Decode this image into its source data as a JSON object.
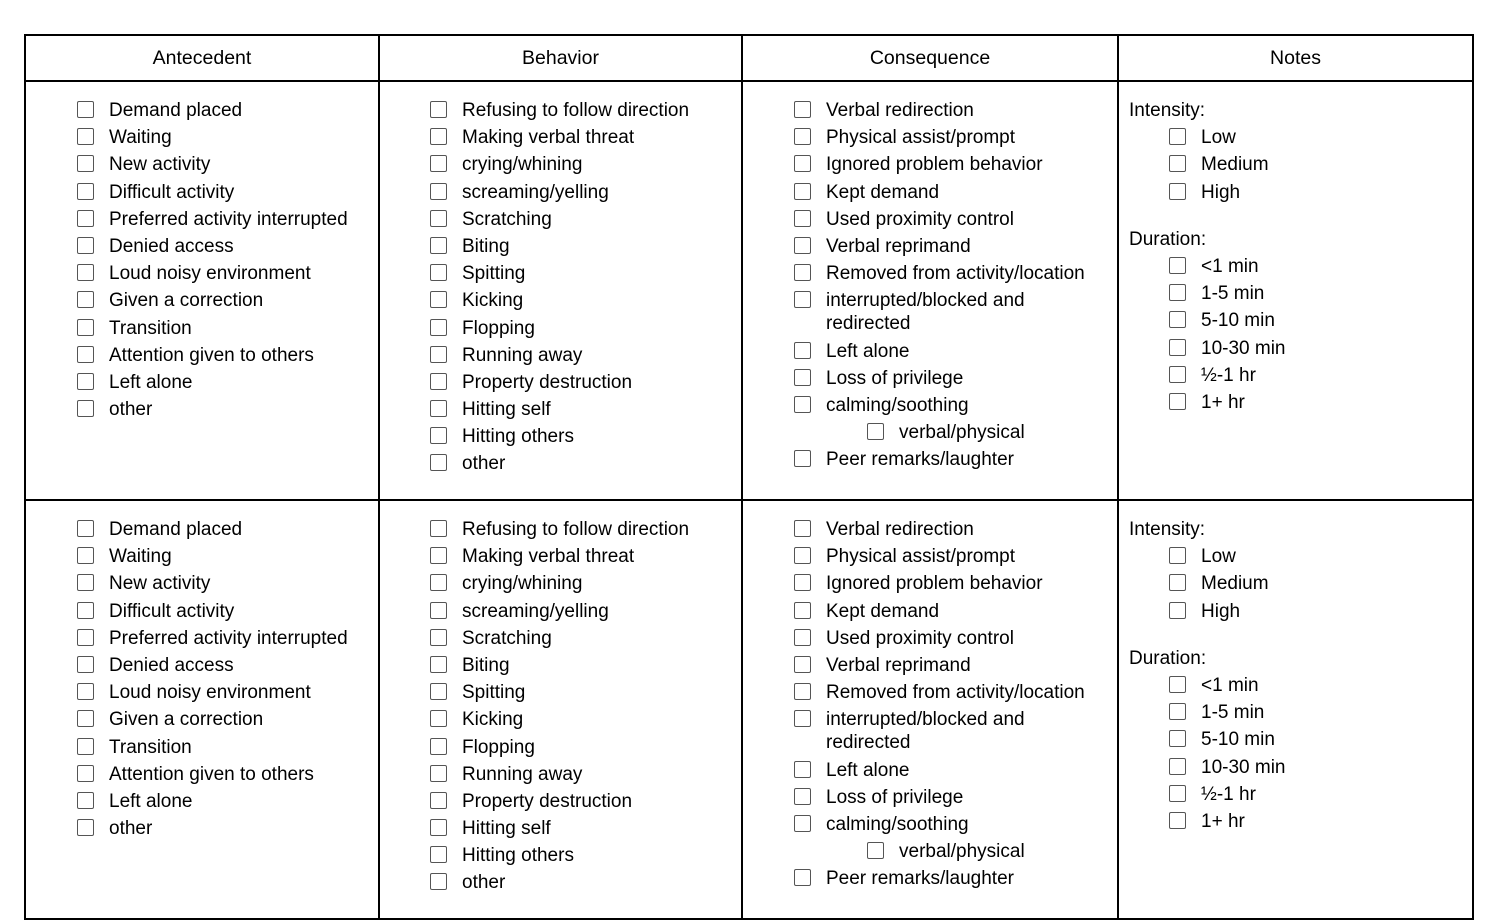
{
  "headers": [
    "Antecedent",
    "Behavior",
    "Consequence",
    "Notes"
  ],
  "rows": [
    {
      "antecedent": [
        "Demand placed",
        "Waiting",
        "New activity",
        "Difficult activity",
        "Preferred activity interrupted",
        "Denied access",
        "Loud noisy environment",
        "Given a correction",
        "Transition",
        "Attention given to others",
        "Left alone",
        "other"
      ],
      "behavior": [
        "Refusing to follow direction",
        "Making verbal threat",
        "crying/whining",
        "screaming/yelling",
        "Scratching",
        "Biting",
        "Spitting",
        "Kicking",
        "Flopping",
        "Running away",
        "Property destruction",
        "Hitting self",
        "Hitting others",
        "other"
      ],
      "consequence": [
        {
          "label": "Verbal redirection"
        },
        {
          "label": "Physical assist/prompt"
        },
        {
          "label": "Ignored problem behavior"
        },
        {
          "label": "Kept demand"
        },
        {
          "label": "Used proximity control"
        },
        {
          "label": "Verbal reprimand"
        },
        {
          "label": "Removed from activity/location"
        },
        {
          "label": "interrupted/blocked and redirected"
        },
        {
          "label": "Left alone"
        },
        {
          "label": "Loss of privilege"
        },
        {
          "label": "calming/soothing"
        },
        {
          "label": "verbal/physical",
          "sub": true
        },
        {
          "label": "Peer remarks/laughter"
        }
      ],
      "notes": {
        "intensity_label": "Intensity:",
        "intensity": [
          "Low",
          "Medium",
          "High"
        ],
        "duration_label": "Duration:",
        "duration": [
          "<1 min",
          "1-5 min",
          "5-10 min",
          "10-30 min",
          "½-1 hr",
          "1+ hr"
        ]
      }
    },
    {
      "antecedent": [
        "Demand placed",
        "Waiting",
        "New activity",
        "Difficult activity",
        "Preferred activity interrupted",
        "Denied access",
        "Loud noisy environment",
        "Given a correction",
        "Transition",
        "Attention given to others",
        "Left alone",
        "other"
      ],
      "behavior": [
        "Refusing to follow direction",
        "Making verbal threat",
        "crying/whining",
        "screaming/yelling",
        "Scratching",
        "Biting",
        "Spitting",
        "Kicking",
        "Flopping",
        "Running away",
        "Property destruction",
        "Hitting self",
        "Hitting others",
        "other"
      ],
      "consequence": [
        {
          "label": "Verbal redirection"
        },
        {
          "label": "Physical assist/prompt"
        },
        {
          "label": "Ignored problem behavior"
        },
        {
          "label": "Kept demand"
        },
        {
          "label": "Used proximity control"
        },
        {
          "label": "Verbal reprimand"
        },
        {
          "label": "Removed from activity/location"
        },
        {
          "label": "interrupted/blocked and redirected"
        },
        {
          "label": "Left alone"
        },
        {
          "label": "Loss of privilege"
        },
        {
          "label": "calming/soothing"
        },
        {
          "label": "verbal/physical",
          "sub": true
        },
        {
          "label": "Peer remarks/laughter"
        }
      ],
      "notes": {
        "intensity_label": "Intensity:",
        "intensity": [
          "Low",
          "Medium",
          "High"
        ],
        "duration_label": "Duration:",
        "duration": [
          "<1 min",
          "1-5 min",
          "5-10 min",
          "10-30 min",
          "½-1 hr",
          "1+ hr"
        ]
      }
    }
  ]
}
